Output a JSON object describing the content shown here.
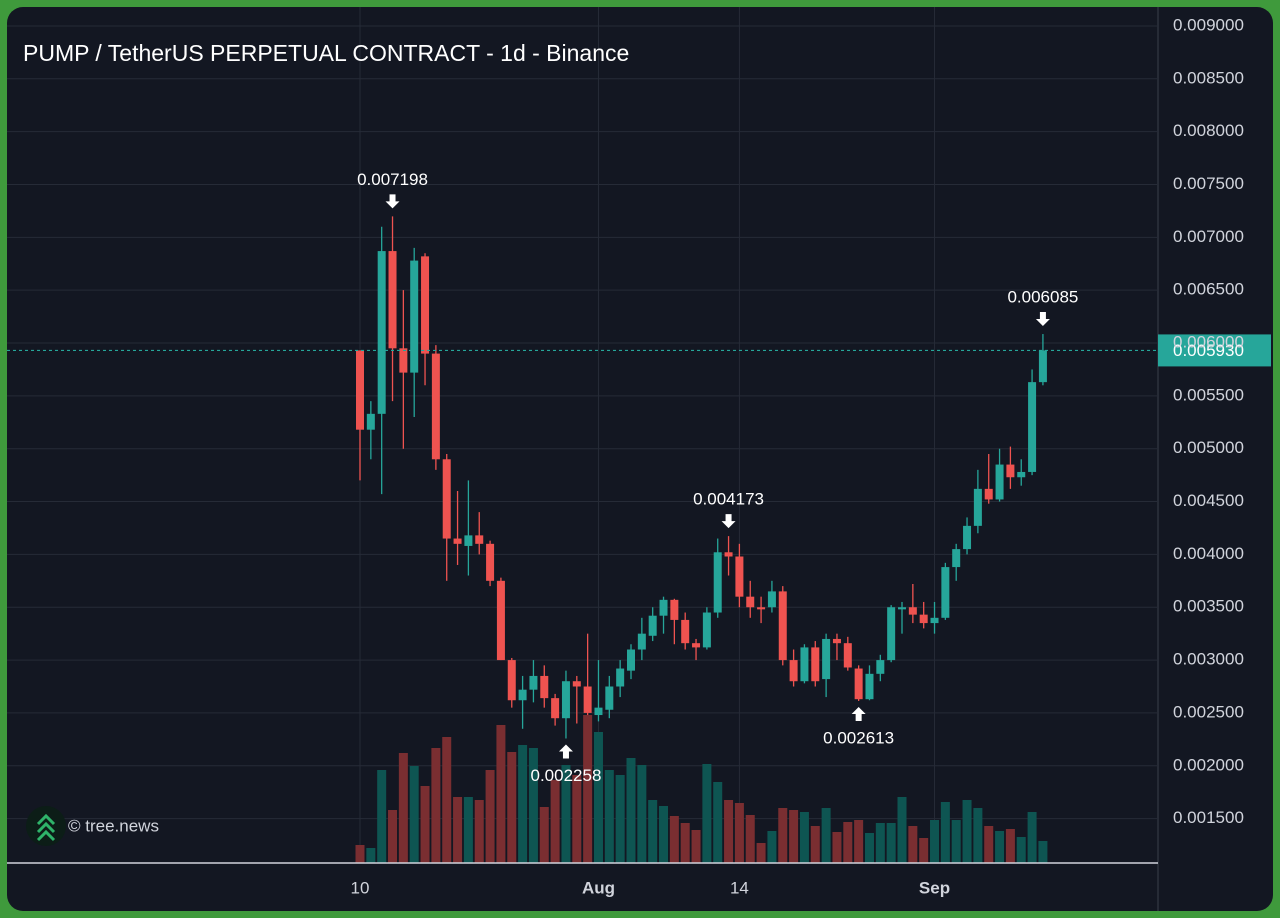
{
  "chart_data": {
    "type": "candlestick",
    "title": "PUMP / TetherUS PERPETUAL CONTRACT - 1d - Binance",
    "watermark": "© tree.news",
    "categories": [
      "10",
      null,
      null,
      null,
      null,
      null,
      null,
      null,
      null,
      null,
      null,
      null,
      null,
      null,
      null,
      null,
      null,
      null,
      null,
      null,
      null,
      null,
      "Aug",
      null,
      null,
      null,
      null,
      null,
      null,
      null,
      null,
      null,
      null,
      null,
      null,
      "14",
      null,
      null,
      null,
      null,
      null,
      null,
      null,
      null,
      null,
      null,
      null,
      null,
      null,
      null,
      null,
      null,
      null,
      "Sep",
      null,
      null,
      null,
      null,
      null,
      null,
      null,
      null,
      null,
      null
    ],
    "open": [
      0.00593,
      0.00518,
      0.00533,
      0.00687,
      0.00595,
      0.00572,
      0.00682,
      0.0059,
      0.0049,
      0.00415,
      0.00408,
      0.00418,
      0.0041,
      0.00375,
      0.003,
      0.00262,
      0.00272,
      0.00285,
      0.00264,
      0.00245,
      0.0028,
      0.00275,
      0.00248,
      0.00253,
      0.00275,
      0.0029,
      0.0031,
      0.00323,
      0.00342,
      0.00357,
      0.00338,
      0.00316,
      0.00312,
      0.00345,
      0.00402,
      0.00398,
      0.0036,
      0.0035,
      0.0035,
      0.00365,
      0.003,
      0.0028,
      0.00312,
      0.00282,
      0.0032,
      0.00316,
      0.00292,
      0.00263,
      0.00287,
      0.003,
      0.00348,
      0.0035,
      0.00343,
      0.00335,
      0.0034,
      0.00388,
      0.00405,
      0.00427,
      0.00462,
      0.00452,
      0.00485,
      0.00473,
      0.00478,
      0.00563
    ],
    "high": [
      0.00593,
      0.00545,
      0.0071,
      0.007198,
      0.0065,
      0.0069,
      0.00685,
      0.00598,
      0.00495,
      0.0046,
      0.0047,
      0.0044,
      0.00413,
      0.00378,
      0.00302,
      0.00285,
      0.003,
      0.00295,
      0.00268,
      0.0029,
      0.00285,
      0.00325,
      0.003,
      0.00285,
      0.003,
      0.00315,
      0.0034,
      0.0035,
      0.0036,
      0.00358,
      0.00345,
      0.0032,
      0.0035,
      0.00415,
      0.004173,
      0.0041,
      0.00375,
      0.0036,
      0.00375,
      0.0037,
      0.0031,
      0.00315,
      0.00318,
      0.00325,
      0.00325,
      0.00322,
      0.00295,
      0.00295,
      0.00305,
      0.00352,
      0.00355,
      0.00372,
      0.00355,
      0.00355,
      0.00392,
      0.0041,
      0.00435,
      0.0048,
      0.00495,
      0.005,
      0.00502,
      0.0049,
      0.00575,
      0.006085
    ],
    "low": [
      0.0047,
      0.0049,
      0.00457,
      0.00545,
      0.005,
      0.0053,
      0.0056,
      0.0048,
      0.00375,
      0.0039,
      0.0038,
      0.004,
      0.0037,
      0.003,
      0.00255,
      0.00235,
      0.0026,
      0.00255,
      0.00238,
      0.002258,
      0.0024,
      0.00248,
      0.00242,
      0.00245,
      0.00265,
      0.00282,
      0.003,
      0.00318,
      0.00325,
      0.00315,
      0.0031,
      0.003,
      0.0031,
      0.0034,
      0.0038,
      0.0035,
      0.0034,
      0.00335,
      0.00345,
      0.00295,
      0.00275,
      0.00278,
      0.00275,
      0.00265,
      0.003,
      0.0029,
      0.002613,
      0.00262,
      0.0028,
      0.00298,
      0.00325,
      0.00335,
      0.0033,
      0.00325,
      0.00338,
      0.00375,
      0.004,
      0.0042,
      0.00448,
      0.0045,
      0.00462,
      0.00465,
      0.00475,
      0.0056
    ],
    "close": [
      0.00518,
      0.00533,
      0.00687,
      0.00595,
      0.00572,
      0.00678,
      0.0059,
      0.0049,
      0.00415,
      0.0041,
      0.00418,
      0.0041,
      0.00375,
      0.003,
      0.00262,
      0.00272,
      0.00285,
      0.00264,
      0.00245,
      0.0028,
      0.00275,
      0.0025,
      0.00255,
      0.00275,
      0.00292,
      0.0031,
      0.00325,
      0.00342,
      0.00357,
      0.00338,
      0.00316,
      0.00312,
      0.00345,
      0.00402,
      0.00398,
      0.0036,
      0.0035,
      0.00348,
      0.00365,
      0.003,
      0.0028,
      0.00312,
      0.0028,
      0.0032,
      0.00316,
      0.00293,
      0.00263,
      0.00287,
      0.003,
      0.0035,
      0.0035,
      0.00343,
      0.00335,
      0.0034,
      0.00388,
      0.00405,
      0.00427,
      0.00462,
      0.00452,
      0.00485,
      0.00473,
      0.00478,
      0.00563,
      0.00593
    ],
    "volume": [
      18,
      15,
      93,
      53,
      110,
      97,
      77,
      115,
      126,
      66,
      66,
      63,
      93,
      138,
      111,
      118,
      115,
      56,
      83,
      98,
      88,
      148,
      131,
      93,
      88,
      105,
      98,
      63,
      57,
      47,
      40,
      33,
      99,
      81,
      63,
      60,
      48,
      20,
      32,
      55,
      53,
      51,
      37,
      55,
      31,
      41,
      43,
      30,
      40,
      40,
      66,
      37,
      25,
      43,
      61,
      43,
      63,
      55,
      37,
      32,
      34,
      26,
      51,
      22
    ],
    "up_color": "#26a69a",
    "down_color": "#ef5350",
    "up_volume_color": "#0e5552",
    "down_volume_color": "#7a2e31",
    "ylim": [
      0.00108,
      0.00917
    ],
    "yticks": [
      {
        "value": 0.0015,
        "label": "0.001500"
      },
      {
        "value": 0.002,
        "label": "0.002000"
      },
      {
        "value": 0.0025,
        "label": "0.002500"
      },
      {
        "value": 0.003,
        "label": "0.003000"
      },
      {
        "value": 0.0035,
        "label": "0.003500"
      },
      {
        "value": 0.004,
        "label": "0.004000"
      },
      {
        "value": 0.0045,
        "label": "0.004500"
      },
      {
        "value": 0.005,
        "label": "0.005000"
      },
      {
        "value": 0.0055,
        "label": "0.005500"
      },
      {
        "value": 0.006,
        "label": "0.006000"
      },
      {
        "value": 0.0065,
        "label": "0.006500"
      },
      {
        "value": 0.007,
        "label": "0.007000"
      },
      {
        "value": 0.0075,
        "label": "0.007500"
      },
      {
        "value": 0.008,
        "label": "0.008000"
      },
      {
        "value": 0.0085,
        "label": "0.008500"
      },
      {
        "value": 0.009,
        "label": "0.009000"
      }
    ],
    "last_price": {
      "value": 0.00593,
      "label": "0.005930"
    },
    "annotations": [
      {
        "value": 0.007198,
        "index": 3,
        "side": "above"
      },
      {
        "value": 0.002258,
        "index": 19,
        "side": "below"
      },
      {
        "value": 0.004173,
        "index": 34,
        "side": "above"
      },
      {
        "value": 0.002613,
        "index": 46,
        "side": "below"
      },
      {
        "value": 0.006085,
        "index": 63,
        "side": "above"
      }
    ],
    "grid": true
  }
}
